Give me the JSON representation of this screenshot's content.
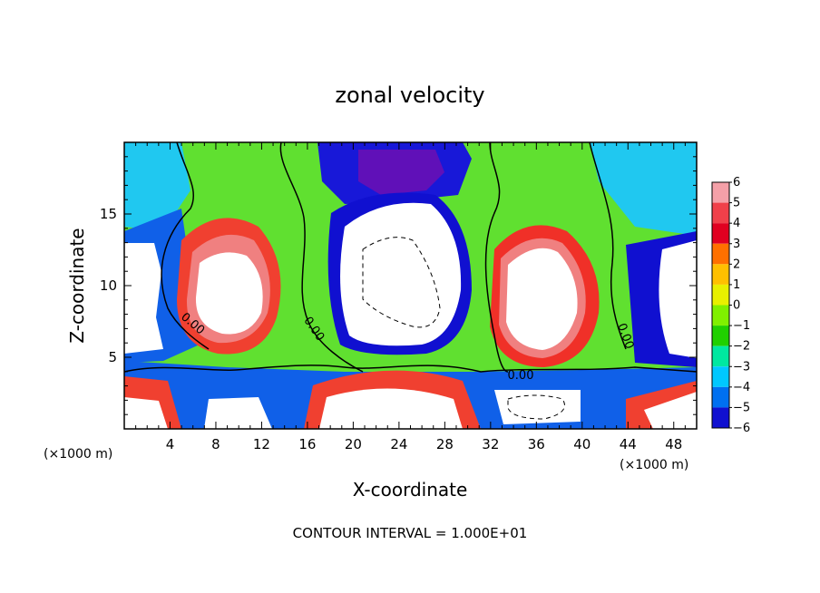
{
  "chart_data": {
    "type": "heatmap",
    "title": "zonal velocity",
    "xlabel": "X-coordinate",
    "ylabel": "Z-coordinate",
    "x_unit": "(×1000 m)",
    "x_unit_right": "(×1000 m)",
    "xlim": [
      0,
      50
    ],
    "ylim": [
      0,
      20
    ],
    "x_ticks": [
      4,
      8,
      12,
      16,
      20,
      24,
      28,
      32,
      36,
      40,
      44,
      48
    ],
    "y_ticks": [
      5,
      10,
      15
    ],
    "colorbar_ticks": [
      6,
      5,
      4,
      3,
      2,
      1,
      0,
      -1,
      -2,
      -3,
      -4,
      -5,
      -6
    ],
    "colorbar_colors": [
      "#f4a0a8",
      "#f0404a",
      "#e00020",
      "#ff7000",
      "#ffc000",
      "#e8f000",
      "#80f000",
      "#20d000",
      "#00e8a0",
      "#00c8ff",
      "#0070f0",
      "#1010d0",
      "#7010c0"
    ],
    "contour_label": "0.00",
    "footer": "CONTOUR INTERVAL = 1.000E+01"
  }
}
